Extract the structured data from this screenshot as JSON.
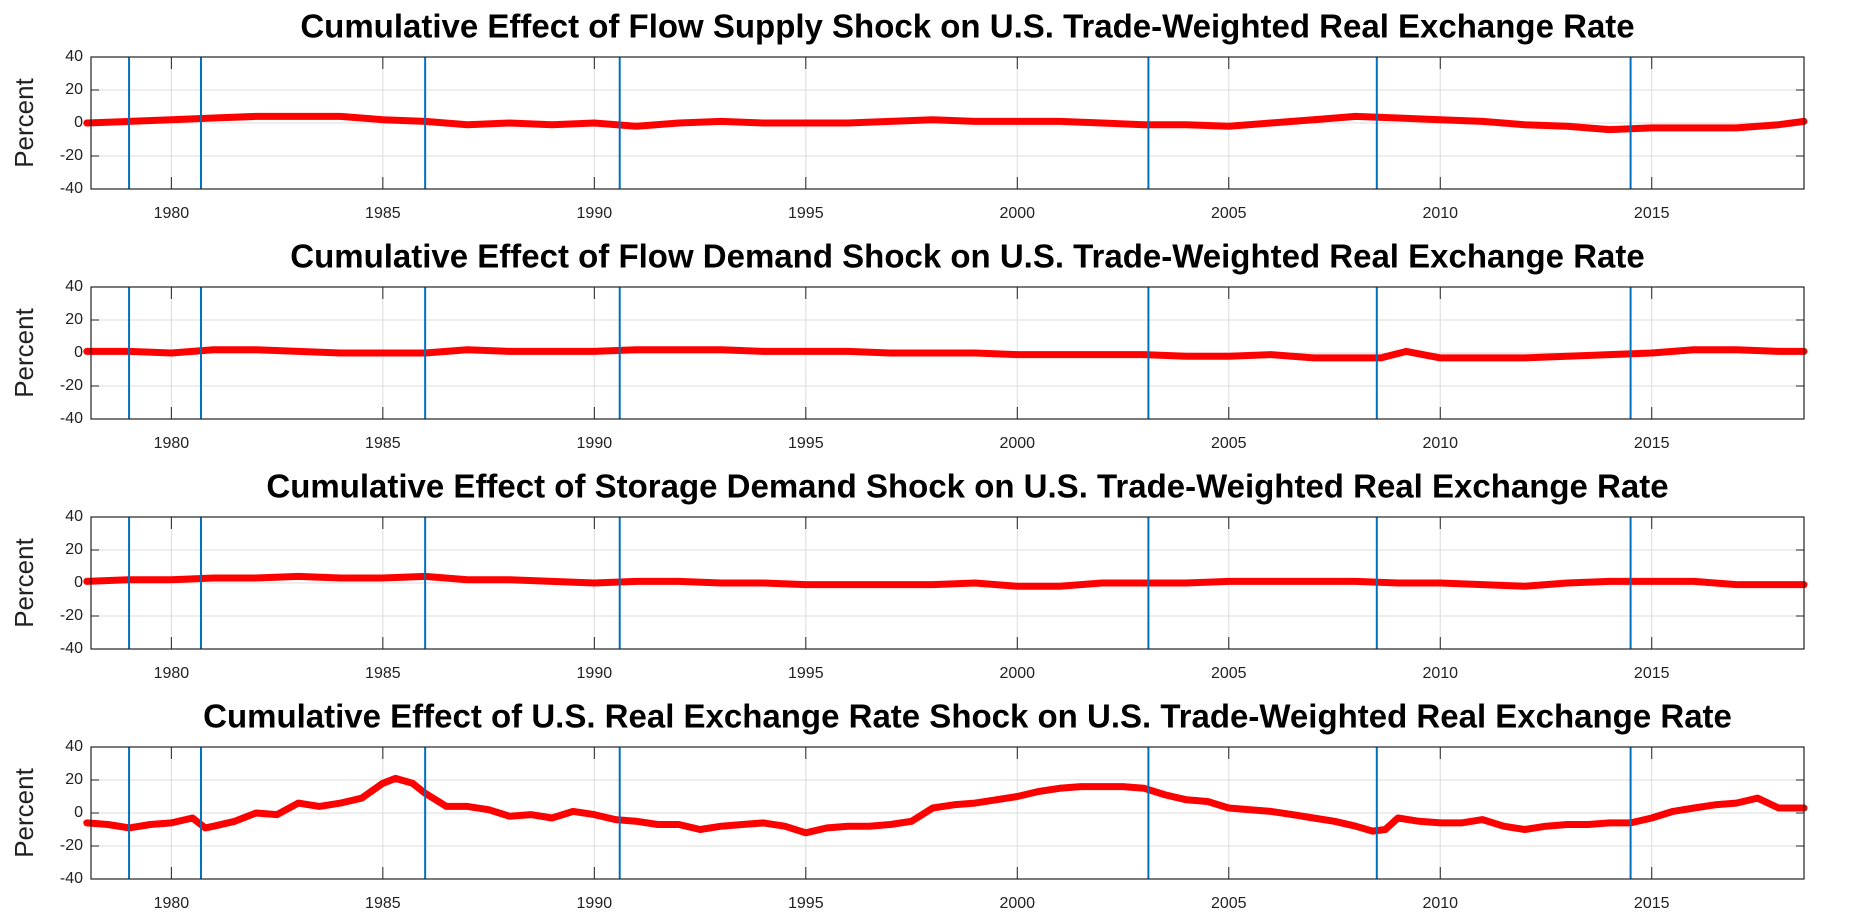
{
  "chart_data": [
    {
      "type": "line",
      "title": "Cumulative Effect of Flow Supply Shock on U.S. Trade-Weighted Real Exchange Rate",
      "ylabel": "Percent",
      "x": [
        1978,
        1979,
        1980,
        1981,
        1982,
        1983,
        1984,
        1985,
        1986,
        1987,
        1988,
        1989,
        1990,
        1991,
        1992,
        1993,
        1994,
        1995,
        1996,
        1997,
        1998,
        1999,
        2000,
        2001,
        2002,
        2003,
        2004,
        2005,
        2006,
        2007,
        2008,
        2009,
        2010,
        2011,
        2012,
        2013,
        2014,
        2015,
        2016,
        2017,
        2018,
        2018.6
      ],
      "values": [
        0,
        1,
        2,
        3,
        4,
        4,
        4,
        2,
        1,
        -1,
        0,
        -1,
        0,
        -2,
        0,
        1,
        0,
        0,
        0,
        1,
        2,
        1,
        1,
        1,
        0,
        -1,
        -1,
        -2,
        0,
        2,
        4,
        3,
        2,
        1,
        -1,
        -2,
        -4,
        -3,
        -3,
        -3,
        -1,
        1
      ],
      "color": "#ff0000",
      "xlim": [
        1978.1,
        2018.6
      ],
      "ylim": [
        -40,
        40
      ],
      "xticks": [
        1980,
        1985,
        1990,
        1995,
        2000,
        2005,
        2010,
        2015
      ],
      "yticks": [
        -40,
        -20,
        0,
        20,
        40
      ],
      "grid": true,
      "vlines": [
        1979.0,
        1980.7,
        1986.0,
        1990.6,
        2003.1,
        2008.5,
        2014.5
      ],
      "vline_color": "#0072bd"
    },
    {
      "type": "line",
      "title": "Cumulative Effect of Flow Demand Shock on U.S. Trade-Weighted Real Exchange Rate",
      "ylabel": "Percent",
      "x": [
        1978,
        1979,
        1980,
        1981,
        1982,
        1983,
        1984,
        1985,
        1986,
        1987,
        1988,
        1989,
        1990,
        1991,
        1992,
        1993,
        1994,
        1995,
        1996,
        1997,
        1998,
        1999,
        2000,
        2001,
        2002,
        2003,
        2004,
        2005,
        2006,
        2007,
        2008,
        2008.6,
        2009.2,
        2010,
        2011,
        2012,
        2013,
        2014,
        2015,
        2016,
        2017,
        2018,
        2018.6
      ],
      "values": [
        1,
        1,
        0,
        2,
        2,
        1,
        0,
        0,
        0,
        2,
        1,
        1,
        1,
        2,
        2,
        2,
        1,
        1,
        1,
        0,
        0,
        0,
        -1,
        -1,
        -1,
        -1,
        -2,
        -2,
        -1,
        -3,
        -3,
        -3,
        1,
        -3,
        -3,
        -3,
        -2,
        -1,
        0,
        2,
        2,
        1,
        1
      ],
      "color": "#ff0000",
      "xlim": [
        1978.1,
        2018.6
      ],
      "ylim": [
        -40,
        40
      ],
      "xticks": [
        1980,
        1985,
        1990,
        1995,
        2000,
        2005,
        2010,
        2015
      ],
      "yticks": [
        -40,
        -20,
        0,
        20,
        40
      ],
      "grid": true,
      "vlines": [
        1979.0,
        1980.7,
        1986.0,
        1990.6,
        2003.1,
        2008.5,
        2014.5
      ],
      "vline_color": "#0072bd"
    },
    {
      "type": "line",
      "title": "Cumulative Effect of Storage Demand Shock on U.S. Trade-Weighted Real Exchange Rate",
      "ylabel": "Percent",
      "x": [
        1978,
        1979,
        1980,
        1981,
        1982,
        1983,
        1984,
        1985,
        1986,
        1987,
        1988,
        1989,
        1990,
        1991,
        1992,
        1993,
        1994,
        1995,
        1996,
        1997,
        1998,
        1999,
        2000,
        2001,
        2002,
        2003,
        2004,
        2005,
        2006,
        2007,
        2008,
        2009,
        2010,
        2011,
        2012,
        2013,
        2014,
        2015,
        2016,
        2017,
        2018,
        2018.6
      ],
      "values": [
        1,
        2,
        2,
        3,
        3,
        4,
        3,
        3,
        4,
        2,
        2,
        1,
        0,
        1,
        1,
        0,
        0,
        -1,
        -1,
        -1,
        -1,
        0,
        -2,
        -2,
        0,
        0,
        0,
        1,
        1,
        1,
        1,
        0,
        0,
        -1,
        -2,
        0,
        1,
        1,
        1,
        -1,
        -1,
        -1
      ],
      "color": "#ff0000",
      "xlim": [
        1978.1,
        2018.6
      ],
      "ylim": [
        -40,
        40
      ],
      "xticks": [
        1980,
        1985,
        1990,
        1995,
        2000,
        2005,
        2010,
        2015
      ],
      "yticks": [
        -40,
        -20,
        0,
        20,
        40
      ],
      "grid": true,
      "vlines": [
        1979.0,
        1980.7,
        1986.0,
        1990.6,
        2003.1,
        2008.5,
        2014.5
      ],
      "vline_color": "#0072bd"
    },
    {
      "type": "line",
      "title": "Cumulative Effect of U.S. Real Exchange Rate Shock on U.S. Trade-Weighted Real Exchange Rate",
      "ylabel": "Percent",
      "x": [
        1978,
        1978.5,
        1979,
        1979.5,
        1980,
        1980.5,
        1980.8,
        1981,
        1981.5,
        1982,
        1982.5,
        1983,
        1983.5,
        1984,
        1984.5,
        1985,
        1985.3,
        1985.7,
        1986,
        1986.5,
        1987,
        1987.5,
        1988,
        1988.5,
        1989,
        1989.5,
        1990,
        1990.5,
        1991,
        1991.5,
        1992,
        1992.5,
        1993,
        1993.5,
        1994,
        1994.5,
        1995,
        1995.5,
        1996,
        1996.5,
        1997,
        1997.5,
        1998,
        1998.5,
        1999,
        1999.5,
        2000,
        2000.5,
        2001,
        2001.5,
        2002,
        2002.5,
        2003,
        2003.5,
        2004,
        2004.5,
        2005,
        2005.5,
        2006,
        2006.5,
        2007,
        2007.5,
        2008,
        2008.4,
        2008.7,
        2009,
        2009.5,
        2010,
        2010.5,
        2011,
        2011.5,
        2012,
        2012.5,
        2013,
        2013.5,
        2014,
        2014.5,
        2015,
        2015.5,
        2016,
        2016.5,
        2017,
        2017.5,
        2018,
        2018.6
      ],
      "values": [
        -6,
        -7,
        -9,
        -7,
        -6,
        -3,
        -9,
        -8,
        -5,
        0,
        -1,
        6,
        4,
        6,
        9,
        18,
        21,
        18,
        12,
        4,
        4,
        2,
        -2,
        -1,
        -3,
        1,
        -1,
        -4,
        -5,
        -7,
        -7,
        -10,
        -8,
        -7,
        -6,
        -8,
        -12,
        -9,
        -8,
        -8,
        -7,
        -5,
        3,
        5,
        6,
        8,
        10,
        13,
        15,
        16,
        16,
        16,
        15,
        11,
        8,
        7,
        3,
        2,
        1,
        -1,
        -3,
        -5,
        -8,
        -11,
        -10,
        -3,
        -5,
        -6,
        -6,
        -4,
        -8,
        -10,
        -8,
        -7,
        -7,
        -6,
        -6,
        -3,
        1,
        3,
        5,
        6,
        9,
        3,
        3
      ],
      "color": "#ff0000",
      "xlim": [
        1978.1,
        2018.6
      ],
      "ylim": [
        -40,
        40
      ],
      "xticks": [
        1980,
        1985,
        1990,
        1995,
        2000,
        2005,
        2010,
        2015
      ],
      "yticks": [
        -40,
        -20,
        0,
        20,
        40
      ],
      "grid": true,
      "vlines": [
        1979.0,
        1980.7,
        1986.0,
        1990.6,
        2003.1,
        2008.5,
        2014.5
      ],
      "vline_color": "#0072bd"
    }
  ]
}
